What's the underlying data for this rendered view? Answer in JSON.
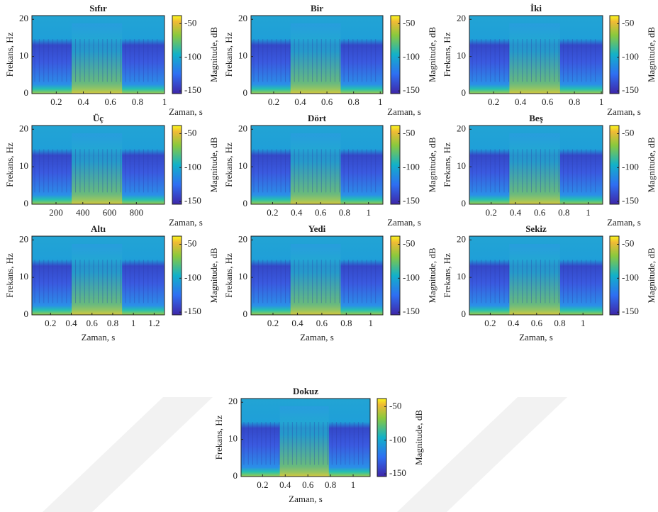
{
  "chart_data": [
    {
      "type": "spectrogram",
      "title": "Sıfır",
      "xlabel": "Zaman, s",
      "ylabel": "Frekans, Hz",
      "colorbar_label": "Magnitude, dB",
      "xlim": [
        0.02,
        1.0
      ],
      "xticks": [
        0.2,
        0.4,
        0.6,
        0.8,
        1
      ],
      "ylim": [
        0,
        21
      ],
      "yticks": [
        0,
        10,
        20
      ],
      "clim": [
        -154,
        -38
      ],
      "cticks": [
        -50,
        -100,
        -150
      ]
    },
    {
      "type": "spectrogram",
      "title": "Bir",
      "xlabel": "Zaman, s",
      "ylabel": "Frekans, Hz",
      "colorbar_label": "Magnitude, dB",
      "xlim": [
        0.03,
        1.02
      ],
      "xticks": [
        0.2,
        0.4,
        0.6,
        0.8,
        1
      ],
      "ylim": [
        0,
        21
      ],
      "yticks": [
        0,
        10,
        20
      ],
      "clim": [
        -154,
        -38
      ],
      "cticks": [
        -50,
        -100,
        -150
      ]
    },
    {
      "type": "spectrogram",
      "title": "İki",
      "xlabel": "Zaman, s",
      "ylabel": "Frekans, Hz",
      "colorbar_label": "Magnitude, dB",
      "xlim": [
        0.02,
        1.01
      ],
      "xticks": [
        0.2,
        0.4,
        0.6,
        0.8,
        1
      ],
      "ylim": [
        0,
        21
      ],
      "yticks": [
        0,
        10,
        20
      ],
      "clim": [
        -154,
        -38
      ],
      "cticks": [
        -50,
        -100,
        -150
      ]
    },
    {
      "type": "spectrogram",
      "title": "Üç",
      "xlabel": "Zaman, s",
      "ylabel": "Frekans, Hz",
      "colorbar_label": "Magnitude, dB",
      "xlim": [
        20,
        1010
      ],
      "xticks": [
        200,
        400,
        600,
        800
      ],
      "ylim": [
        0,
        21
      ],
      "yticks": [
        0,
        10,
        20
      ],
      "clim": [
        -154,
        -38
      ],
      "cticks": [
        -50,
        -100,
        -150
      ]
    },
    {
      "type": "spectrogram",
      "title": "Dört",
      "xlabel": "Zaman, s",
      "ylabel": "Frekans, Hz",
      "colorbar_label": "Magnitude, dB",
      "xlim": [
        0.02,
        1.12
      ],
      "xticks": [
        0.2,
        0.4,
        0.6,
        0.8,
        1
      ],
      "ylim": [
        0,
        21
      ],
      "yticks": [
        0,
        10,
        20
      ],
      "clim": [
        -154,
        -38
      ],
      "cticks": [
        -50,
        -100,
        -150
      ]
    },
    {
      "type": "spectrogram",
      "title": "Beş",
      "xlabel": "Zaman, s",
      "ylabel": "Frekans, Hz",
      "colorbar_label": "Magnitude, dB",
      "xlim": [
        0.02,
        1.12
      ],
      "xticks": [
        0.2,
        0.4,
        0.6,
        0.8,
        1
      ],
      "ylim": [
        0,
        21
      ],
      "yticks": [
        0,
        10,
        20
      ],
      "clim": [
        -154,
        -38
      ],
      "cticks": [
        -50,
        -100,
        -150
      ]
    },
    {
      "type": "spectrogram",
      "title": "Altı",
      "xlabel": "Zaman, s",
      "ylabel": "Frekans, Hz",
      "colorbar_label": "Magnitude, dB",
      "xlim": [
        0.02,
        1.3
      ],
      "xticks": [
        0.2,
        0.4,
        0.6,
        0.8,
        1,
        1.2
      ],
      "ylim": [
        0,
        21
      ],
      "yticks": [
        0,
        10,
        20
      ],
      "clim": [
        -154,
        -38
      ],
      "cticks": [
        -50,
        -100,
        -150
      ]
    },
    {
      "type": "spectrogram",
      "title": "Yedi",
      "xlabel": "Zaman, s",
      "ylabel": "Frekans, Hz",
      "colorbar_label": "Magnitude, dB",
      "xlim": [
        0.02,
        1.1
      ],
      "xticks": [
        0.2,
        0.4,
        0.6,
        0.8,
        1
      ],
      "ylim": [
        0,
        21
      ],
      "yticks": [
        0,
        10,
        20
      ],
      "clim": [
        -154,
        -38
      ],
      "cticks": [
        -50,
        -100,
        -150
      ]
    },
    {
      "type": "spectrogram",
      "title": "Sekiz",
      "xlabel": "Zaman, s",
      "ylabel": "Frekans, Hz",
      "colorbar_label": "Magnitude, dB",
      "xlim": [
        0.02,
        1.17
      ],
      "xticks": [
        0.2,
        0.4,
        0.6,
        0.8,
        1
      ],
      "ylim": [
        0,
        21
      ],
      "yticks": [
        0,
        10,
        20
      ],
      "clim": [
        -154,
        -38
      ],
      "cticks": [
        -50,
        -100,
        -150
      ]
    },
    {
      "type": "spectrogram",
      "title": "Dokuz",
      "xlabel": "Zaman, s",
      "ylabel": "Frekans, Hz",
      "colorbar_label": "Magnitude, dB",
      "xlim": [
        0.01,
        1.15
      ],
      "xticks": [
        0.2,
        0.4,
        0.6,
        0.8,
        1
      ],
      "ylim": [
        0,
        21
      ],
      "yticks": [
        0,
        10,
        20
      ],
      "clim": [
        -154,
        -38
      ],
      "cticks": [
        -50,
        -100,
        -150
      ]
    }
  ]
}
